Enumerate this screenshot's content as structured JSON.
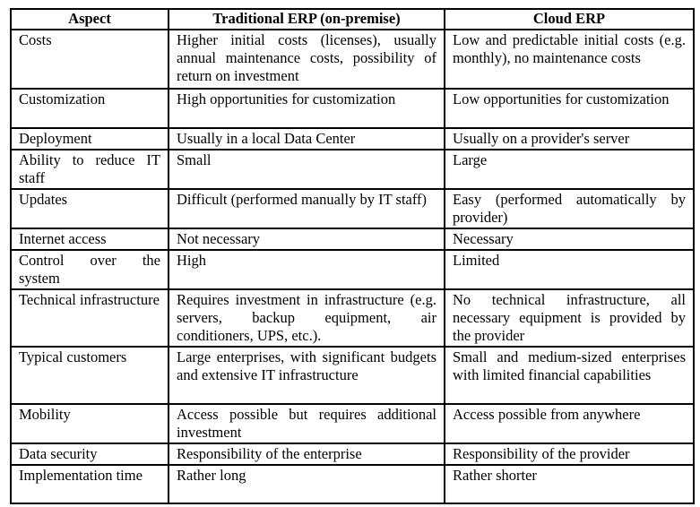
{
  "table": {
    "headers": [
      "Aspect",
      "Traditional ERP (on-premise)",
      "Cloud ERP"
    ],
    "rows": [
      [
        "Costs",
        "Higher initial costs (licenses), usually annual maintenance costs, possibility of return on investment",
        "Low and predictable initial costs (e.g. monthly), no maintenance costs"
      ],
      [
        "Customization",
        "High opportunities for customization",
        "Low opportunities for customization"
      ],
      [
        "Deployment",
        "Usually in a local Data Center",
        "Usually on a provider's server"
      ],
      [
        "Ability to reduce IT staff",
        "Small",
        "Large"
      ],
      [
        "Updates",
        "Difficult (performed manually by IT staff)",
        "Easy (performed automatically by provider)"
      ],
      [
        "Internet access",
        "Not necessary",
        "Necessary"
      ],
      [
        "Control over the system",
        "High",
        "Limited"
      ],
      [
        "Technical infrastructure",
        "Requires investment in infrastructure (e.g. servers, backup equipment, air conditioners, UPS, etc.).",
        "No technical infrastructure, all necessary equipment is provided by the provider"
      ],
      [
        "Typical customers",
        "Large enterprises, with significant budgets and extensive IT infrastructure",
        "Small and medium-sized enterprises with limited financial capabilities"
      ],
      [
        "Mobility",
        "Access possible but requires additional investment",
        "Access possible from anywhere"
      ],
      [
        "Data security",
        "Responsibility of the enterprise",
        "Responsibility of the provider"
      ],
      [
        "Implementation time",
        "Rather long",
        "Rather shorter"
      ]
    ]
  }
}
